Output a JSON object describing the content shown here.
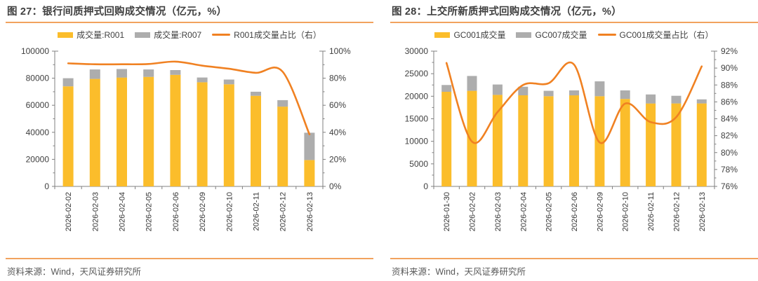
{
  "source_note": "资料来源：Wind，天风证券研究所",
  "colors": {
    "bar_primary": "#FBBD2B",
    "bar_secondary": "#ADADAD",
    "line": "#F08122",
    "accent_rule": "#F2A25E",
    "title_text": "#3F3F3F",
    "source_text": "#595959",
    "axis_line": "#808080",
    "tick_text": "#404040"
  },
  "chart_data": [
    {
      "type": "bar+line",
      "title": "图 27：银行间质押式回购成交情况（亿元，%）",
      "legend_position": "top",
      "grid": false,
      "categories": [
        "2026-02-02",
        "2026-02-03",
        "2026-02-04",
        "2026-02-05",
        "2026-02-06",
        "2026-02-09",
        "2026-02-10",
        "2026-02-11",
        "2026-02-12",
        "2026-02-13"
      ],
      "series": [
        {
          "name": "成交量:R001",
          "kind": "bar",
          "stacked": true,
          "color": "#FBBD2B",
          "values": [
            74000,
            79500,
            80500,
            81000,
            82500,
            77000,
            75500,
            67000,
            59000,
            19500
          ]
        },
        {
          "name": "成交量:R007",
          "kind": "bar",
          "stacked": true,
          "color": "#ADADAD",
          "values": [
            6000,
            7000,
            6300,
            5500,
            3500,
            3500,
            3500,
            3000,
            4800,
            20200
          ]
        },
        {
          "name": "R001成交量占比（右）",
          "kind": "line",
          "axis": "right",
          "color": "#F08122",
          "values": [
            91,
            90.3,
            90.3,
            90.5,
            92.3,
            89.3,
            87,
            84,
            84.8,
            38.5
          ]
        }
      ],
      "left_axis": {
        "min": 0,
        "max": 100000,
        "step": 20000,
        "labels": [
          "0",
          "20000",
          "40000",
          "60000",
          "80000",
          "100000"
        ]
      },
      "right_axis": {
        "min": 0,
        "max": 100,
        "step": 20,
        "labels": [
          "0%",
          "20%",
          "40%",
          "60%",
          "80%",
          "100%"
        ]
      }
    },
    {
      "type": "bar+line",
      "title": "图 28：上交所新质押式回购成交情况（亿元，%）",
      "legend_position": "top",
      "grid": false,
      "categories": [
        "2026-01-30",
        "2026-02-02",
        "2026-02-03",
        "2026-02-04",
        "2026-02-05",
        "2026-02-06",
        "2026-02-09",
        "2026-02-10",
        "2026-02-11",
        "2026-02-12",
        "2026-02-13"
      ],
      "series": [
        {
          "name": "GC001成交量",
          "kind": "bar",
          "stacked": true,
          "color": "#FBBD2B",
          "values": [
            21000,
            21200,
            20300,
            20200,
            20000,
            20200,
            20000,
            19400,
            18400,
            18400,
            18400
          ]
        },
        {
          "name": "GC007成交量",
          "kind": "bar",
          "stacked": true,
          "color": "#ADADAD",
          "values": [
            1500,
            3300,
            2300,
            1900,
            1200,
            1100,
            3300,
            1900,
            2000,
            1700,
            900
          ]
        },
        {
          "name": "GC001成交量占比（右）",
          "kind": "line",
          "axis": "right",
          "color": "#F08122",
          "values": [
            90.6,
            81.3,
            84.8,
            88,
            88.2,
            90.4,
            81.2,
            85.8,
            83.6,
            84.2,
            90.2
          ]
        }
      ],
      "left_axis": {
        "min": 0,
        "max": 30000,
        "step": 5000,
        "labels": [
          "0",
          "5000",
          "10000",
          "15000",
          "20000",
          "25000",
          "30000"
        ]
      },
      "right_axis": {
        "min": 76,
        "max": 92,
        "step": 2,
        "labels": [
          "76%",
          "78%",
          "80%",
          "82%",
          "84%",
          "86%",
          "88%",
          "90%",
          "92%"
        ]
      }
    }
  ]
}
